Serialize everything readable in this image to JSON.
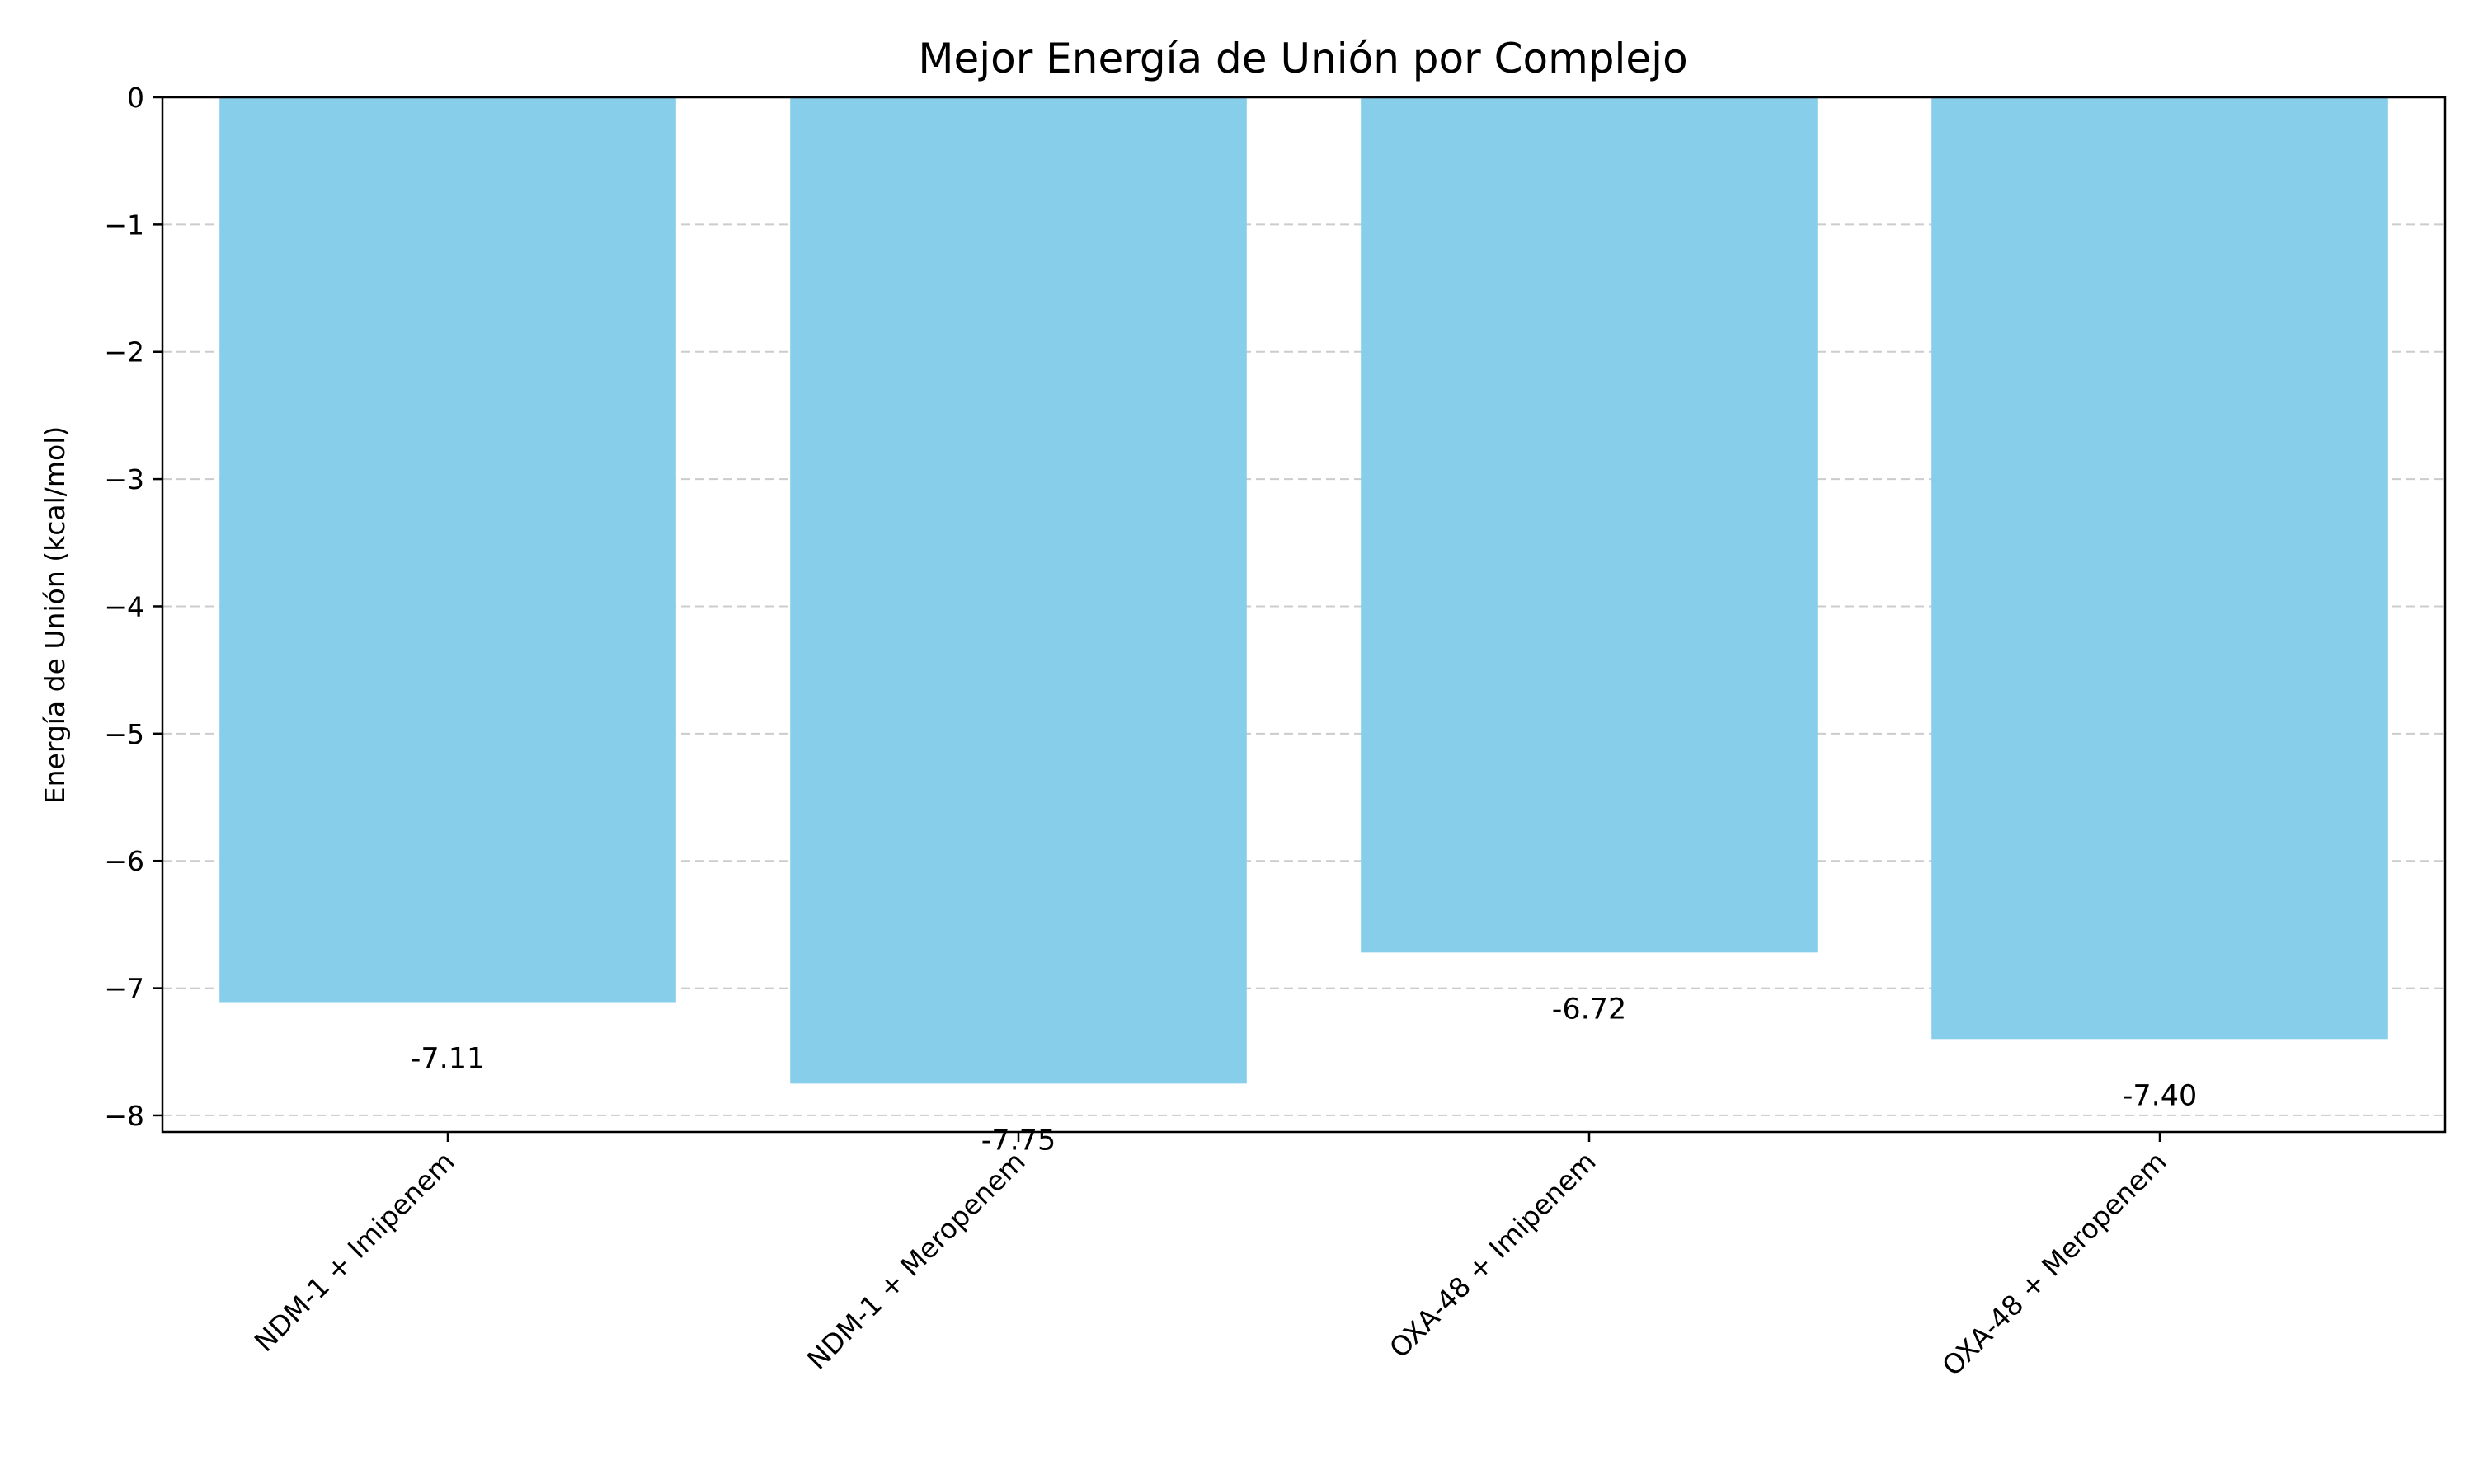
{
  "chart_data": {
    "type": "bar",
    "title": "Mejor Energía de Unión por Complejo",
    "xlabel": "",
    "ylabel": "Energía de Unión (kcal/mol)",
    "categories": [
      "NDM-1 + Imipenem",
      "NDM-1 + Meropenem",
      "OXA-48 + Imipenem",
      "OXA-48 + Meropenem"
    ],
    "values": [
      -7.11,
      -7.75,
      -6.72,
      -7.4
    ],
    "value_labels": [
      "-7.11",
      "-7.75",
      "-6.72",
      "-7.40"
    ],
    "ylim": [
      -8.13,
      0
    ],
    "yticks": [
      0,
      -1,
      -2,
      -3,
      -4,
      -5,
      -6,
      -7,
      -8
    ],
    "ytick_labels": [
      "0",
      "−1",
      "−2",
      "−3",
      "−4",
      "−5",
      "−6",
      "−7",
      "−8"
    ],
    "grid": "y-dashed",
    "bar_color": "#87CEEB",
    "grid_color": "#cccccc"
  }
}
